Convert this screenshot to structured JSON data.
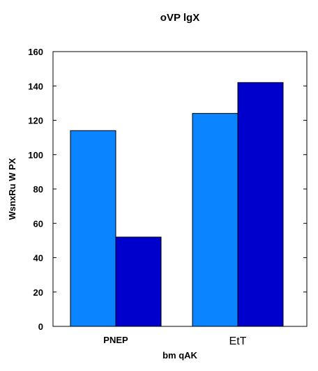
{
  "chart_data": {
    "type": "bar",
    "title": "oVP   lgX",
    "xlabel": "bm  qAK",
    "ylabel": "WsnxRu W PX",
    "categories": [
      "PNEP",
      "EtT"
    ],
    "series": [
      {
        "values": [
          114,
          124
        ],
        "color": "#0a84ff"
      },
      {
        "values": [
          52,
          142
        ],
        "color": "#0000cc"
      }
    ],
    "ylim": [
      0,
      160
    ],
    "yticks": [
      0,
      20,
      40,
      60,
      80,
      100,
      120,
      140,
      160
    ],
    "grid": false,
    "legend": "none"
  }
}
